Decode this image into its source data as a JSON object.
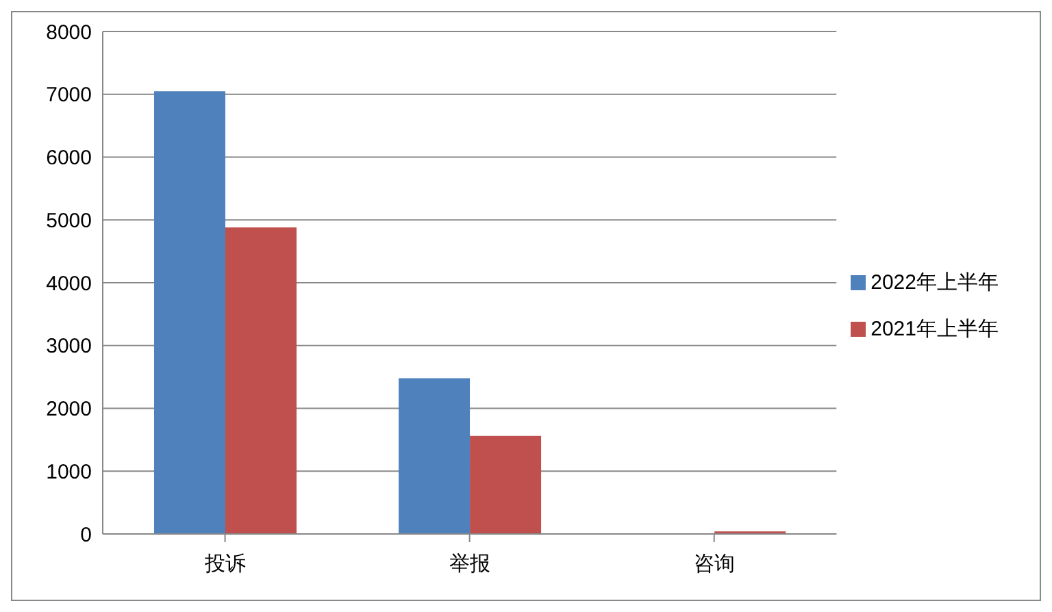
{
  "chart_data": {
    "type": "bar",
    "categories": [
      "投诉",
      "举报",
      "咨询"
    ],
    "series": [
      {
        "name": "2022年上半年",
        "color": "#4f81bd",
        "values": [
          7050,
          2480,
          0
        ]
      },
      {
        "name": "2021年上半年",
        "color": "#c0504d",
        "values": [
          4880,
          1560,
          40
        ]
      }
    ],
    "ylim": [
      0,
      8000
    ],
    "yticks": [
      0,
      1000,
      2000,
      3000,
      4000,
      5000,
      6000,
      7000,
      8000
    ],
    "grid": "y",
    "legend": "right"
  }
}
